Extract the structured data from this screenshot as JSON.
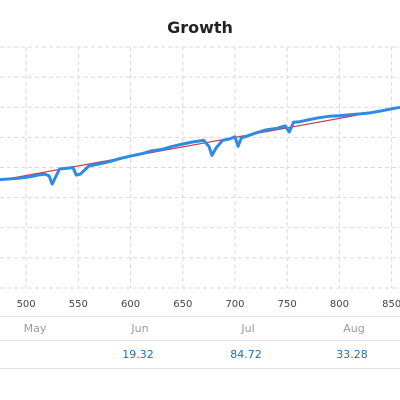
{
  "chart_data": {
    "type": "line",
    "title": "Growth",
    "xlim": [
      475,
      858
    ],
    "ylim": [
      0,
      8
    ],
    "grid": true,
    "x_ticks": [
      500,
      550,
      600,
      650,
      700,
      750,
      800,
      850
    ],
    "series": [
      {
        "color": "#2f8ae2",
        "x": [
          475,
          485,
          495,
          505,
          512,
          518,
          522,
          525,
          532,
          540,
          545,
          548,
          552,
          560,
          570,
          580,
          590,
          600,
          610,
          620,
          630,
          640,
          650,
          660,
          670,
          675,
          678,
          682,
          688,
          695,
          700,
          703,
          706,
          712,
          720,
          730,
          740,
          748,
          752,
          756,
          762,
          770,
          780,
          790,
          800,
          810,
          820,
          830,
          840,
          850,
          858
        ],
        "y": [
          3.6,
          3.62,
          3.65,
          3.7,
          3.75,
          3.78,
          3.72,
          3.45,
          3.95,
          3.98,
          4.0,
          3.75,
          3.78,
          4.05,
          4.12,
          4.2,
          4.3,
          4.38,
          4.45,
          4.55,
          4.6,
          4.7,
          4.78,
          4.85,
          4.9,
          4.7,
          4.4,
          4.65,
          4.9,
          4.95,
          5.02,
          4.7,
          4.98,
          5.05,
          5.15,
          5.25,
          5.3,
          5.38,
          5.18,
          5.5,
          5.52,
          5.58,
          5.65,
          5.7,
          5.72,
          5.75,
          5.78,
          5.82,
          5.88,
          5.95,
          6.0
        ]
      },
      {
        "color": "#c93a4a",
        "x": [
          475,
          858
        ],
        "y": [
          3.58,
          6.0
        ]
      }
    ]
  },
  "months": [
    {
      "label": "May"
    },
    {
      "label": "Jun"
    },
    {
      "label": "Jul"
    },
    {
      "label": "Aug"
    }
  ],
  "month_values": [
    {
      "value": "19.32"
    },
    {
      "value": "84.72"
    },
    {
      "value": "33.28"
    }
  ]
}
